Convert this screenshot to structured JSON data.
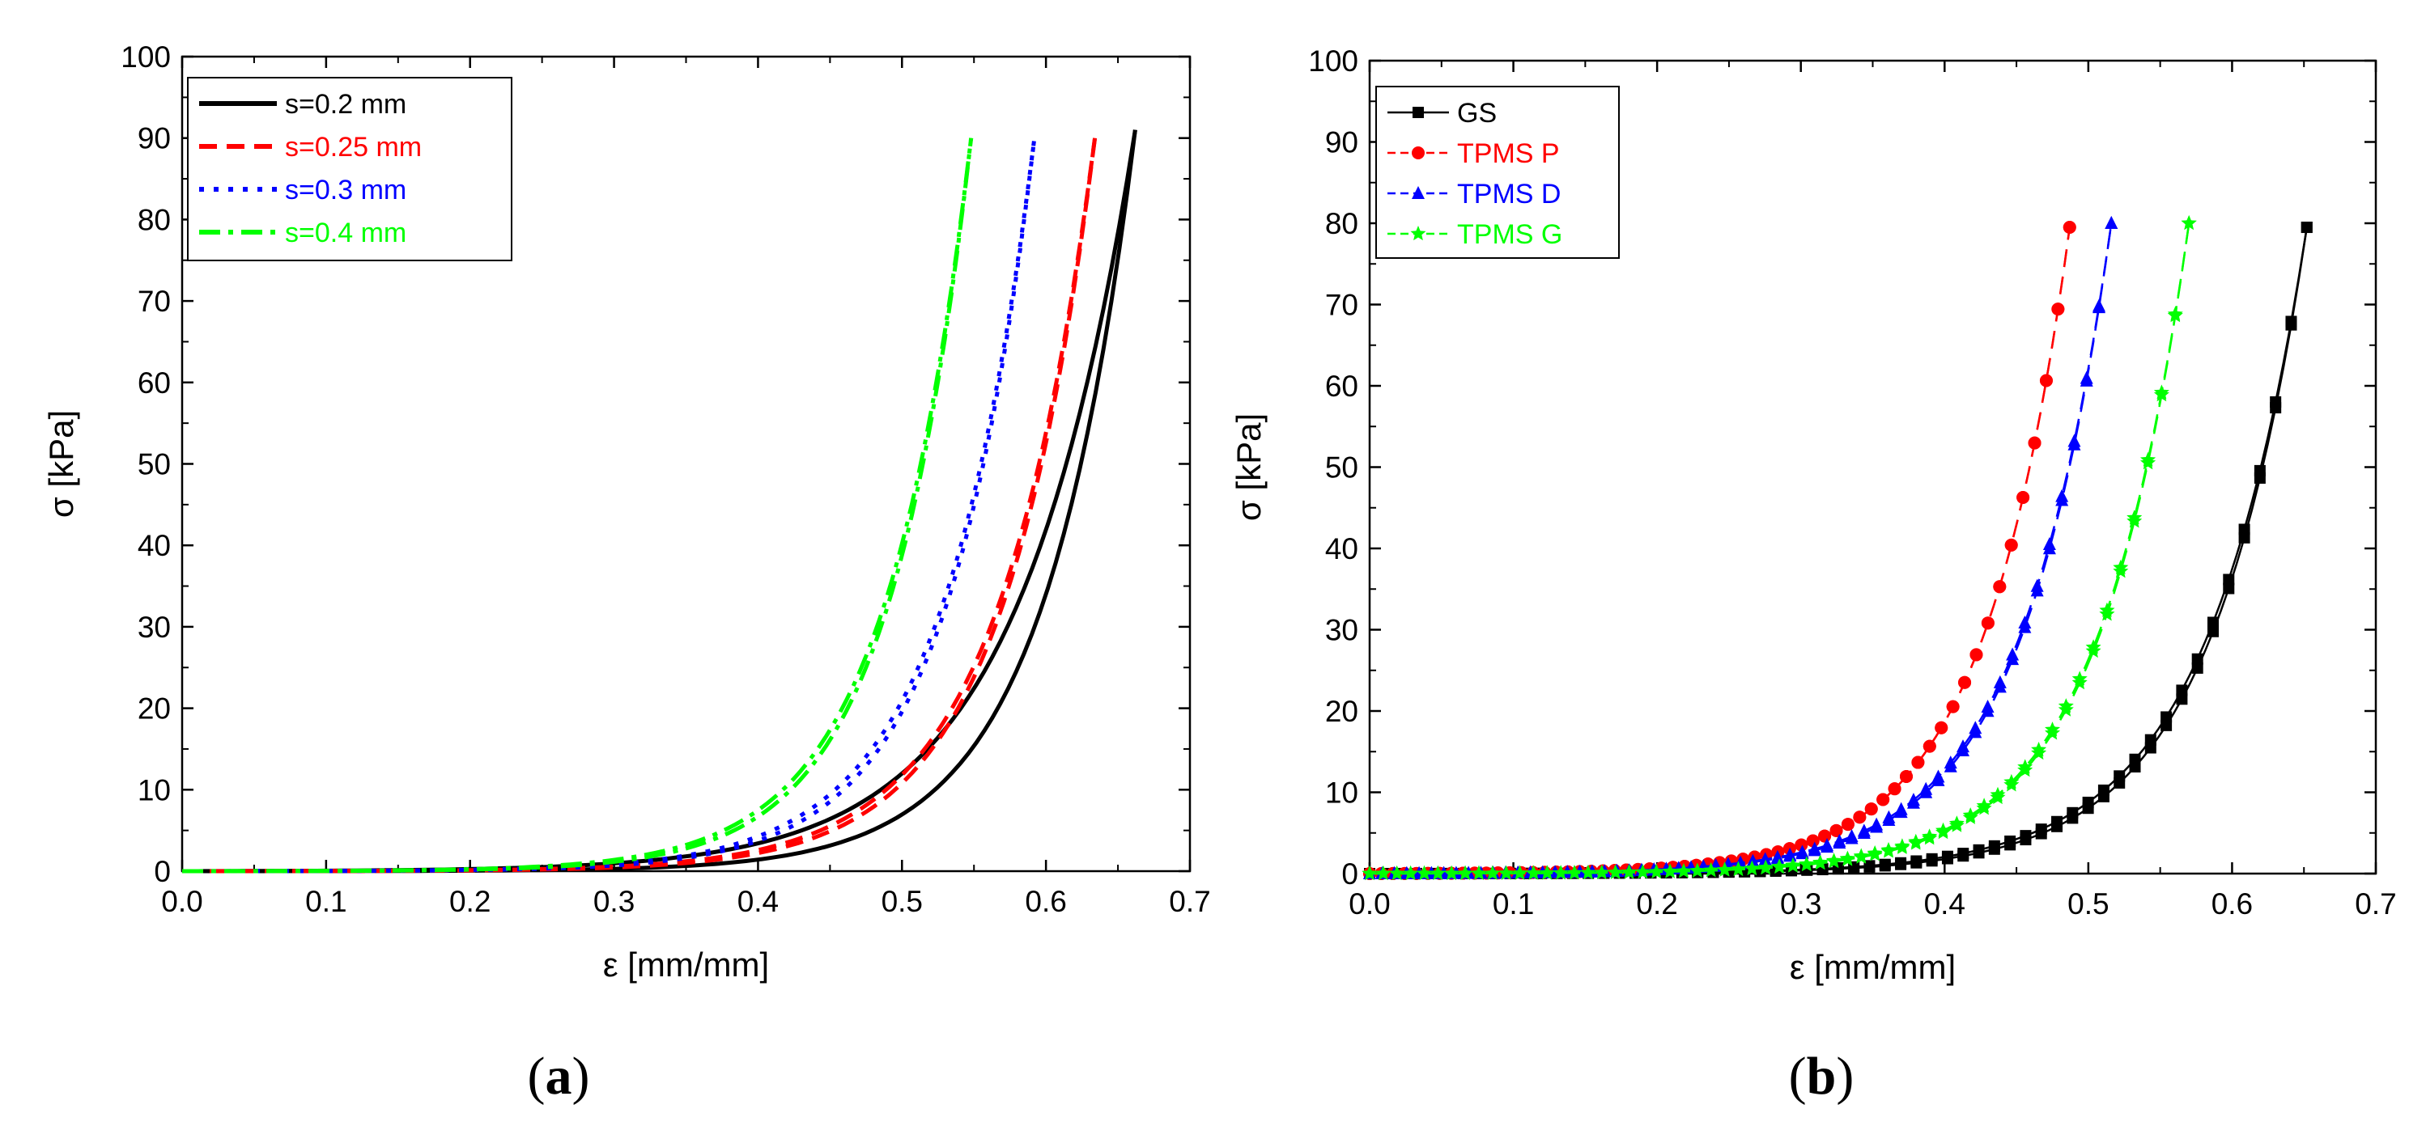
{
  "chart_data": [
    {
      "type": "line",
      "panel_label": "a",
      "xlabel": "ε [mm/mm]",
      "ylabel": "σ [kPa]",
      "xlim": [
        0,
        0.7
      ],
      "ylim": [
        0,
        100
      ],
      "xticks": [
        0.0,
        0.1,
        0.2,
        0.3,
        0.4,
        0.5,
        0.6,
        0.7
      ],
      "yticks": [
        0,
        10,
        20,
        30,
        40,
        50,
        60,
        70,
        80,
        90,
        100
      ],
      "xtick_labels": [
        "0.0",
        "0.1",
        "0.2",
        "0.3",
        "0.4",
        "0.5",
        "0.6",
        "0.7"
      ],
      "ytick_labels": [
        "0",
        "10",
        "20",
        "30",
        "40",
        "50",
        "60",
        "70",
        "80",
        "90",
        "100"
      ],
      "legend_position": "top-left",
      "series": [
        {
          "name": "s=0.2 mm",
          "color": "#000000",
          "dash": "solid",
          "marker": "none",
          "emax": 0.662,
          "smax": 91,
          "upper_a": 0.00025,
          "upper_b": 0.8,
          "lower_a": 0.0024,
          "lower_b": 0.63
        },
        {
          "name": "s=0.25 mm",
          "color": "#ff0000",
          "dash": "dash",
          "marker": "none",
          "emax": 0.634,
          "smax": 90,
          "upper_a": 0.0017,
          "upper_b": 0.66,
          "lower_a": 0.0022,
          "lower_b": 0.632
        },
        {
          "name": "s=0.3 mm",
          "color": "#0000ff",
          "dash": "dot",
          "marker": "none",
          "emax": 0.592,
          "smax": 90,
          "upper_a": 0.001,
          "upper_b": 0.63,
          "lower_a": 0.0018,
          "lower_b": 0.603
        },
        {
          "name": "s=0.4 mm",
          "color": "#00ff00",
          "dash": "dashdot",
          "marker": "none",
          "emax": 0.548,
          "smax": 90,
          "upper_a": 0.0018,
          "upper_b": 0.595,
          "lower_a": 0.0024,
          "lower_b": 0.57
        }
      ]
    },
    {
      "type": "line",
      "panel_label": "b",
      "xlabel": "ε [mm/mm]",
      "ylabel": "σ [kPa]",
      "xlim": [
        0,
        0.7
      ],
      "ylim": [
        0,
        100
      ],
      "xticks": [
        0.0,
        0.1,
        0.2,
        0.3,
        0.4,
        0.5,
        0.6,
        0.7
      ],
      "yticks": [
        0,
        10,
        20,
        30,
        40,
        50,
        60,
        70,
        80,
        90,
        100
      ],
      "xtick_labels": [
        "0.0",
        "0.1",
        "0.2",
        "0.3",
        "0.4",
        "0.5",
        "0.6",
        "0.7"
      ],
      "ytick_labels": [
        "0",
        "10",
        "20",
        "30",
        "40",
        "50",
        "60",
        "70",
        "80",
        "90",
        "100"
      ],
      "legend_position": "top-left",
      "series": [
        {
          "name": "GS",
          "color": "#000000",
          "dash": "solid",
          "marker": "square",
          "emax": 0.652,
          "smax": 79.5,
          "upper_a": 0.001,
          "upper_b": 0.69,
          "lower_a": 0.0025,
          "lower_b": 0.664
        },
        {
          "name": "TPMS P",
          "color": "#ff0000",
          "dash": "dash",
          "marker": "circle",
          "emax": 0.487,
          "smax": 79.5,
          "upper_a": 0.007,
          "upper_b": 0.6,
          "lower_a": 0.0075,
          "lower_b": 0.6
        },
        {
          "name": "TPMS D",
          "color": "#0000ff",
          "dash": "dash",
          "marker": "triangle",
          "emax": 0.516,
          "smax": 80,
          "upper_a": 0.0064,
          "upper_b": 0.62,
          "lower_a": 0.0085,
          "lower_b": 0.632
        },
        {
          "name": "TPMS G",
          "color": "#00ff00",
          "dash": "dash",
          "marker": "star",
          "emax": 0.57,
          "smax": 80,
          "upper_a": 0.0034,
          "upper_b": 0.63,
          "lower_a": 0.0043,
          "lower_b": 0.62
        }
      ]
    }
  ]
}
